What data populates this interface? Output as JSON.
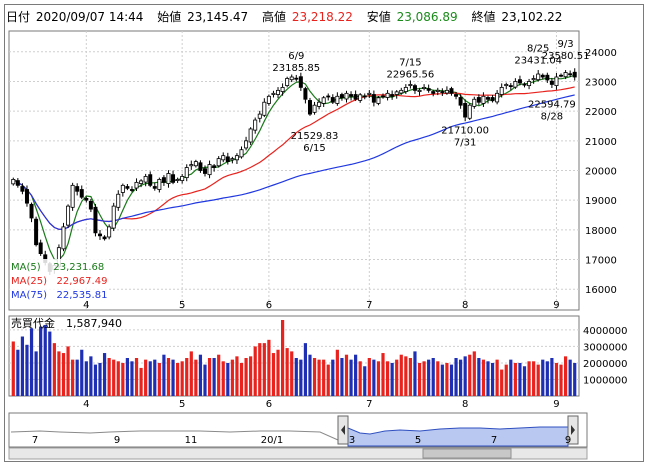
{
  "header": {
    "date_label": "日付",
    "date_value": "2020/09/07 14:44",
    "open_label": "始値",
    "open_value": "23,145.47",
    "high_label": "高値",
    "high_value": "23,218.22",
    "low_label": "安値",
    "low_value": "23,086.89",
    "close_label": "終値",
    "close_value": "23,102.22"
  },
  "colors": {
    "up": "#e8231e",
    "down": "#1e2fb4",
    "ma5": "#1a7a1a",
    "ma25": "#e8231e",
    "ma75": "#2038e0",
    "high_value": "#e8231e",
    "low_value": "#1a8a1a",
    "navigator_fill": "#b8c8f0"
  },
  "legend": {
    "ma5": "MA(5)    23,231.68",
    "ma25": "MA(25)   22,967.49",
    "ma75": "MA(75)   22,535.81"
  },
  "volume_header": "売買代金　1,587,940",
  "navigator_labels": [
    "7",
    "9",
    "11",
    "20/1",
    "3",
    "5",
    "7",
    "9"
  ],
  "chart_data": {
    "type": "candlestick",
    "title": "",
    "price_axis": {
      "ylim": [
        15300,
        24700
      ],
      "ticks": [
        16000,
        17000,
        18000,
        19000,
        20000,
        21000,
        22000,
        23000,
        24000
      ]
    },
    "volume_axis": {
      "ylim": [
        0,
        4600000
      ],
      "ticks": [
        1000000,
        2000000,
        3000000,
        4000000
      ]
    },
    "month_ticks": [
      {
        "label": "4",
        "index": 16
      },
      {
        "label": "5",
        "index": 37
      },
      {
        "label": "6",
        "index": 56
      },
      {
        "label": "7",
        "index": 78
      },
      {
        "label": "8",
        "index": 99
      },
      {
        "label": "9",
        "index": 119
      }
    ],
    "annotations": [
      {
        "date": "6/9",
        "text": "23185.85",
        "index": 62,
        "value": 23185.85,
        "pos": "above"
      },
      {
        "date": "6/15",
        "text": "21529.83",
        "index": 66,
        "value": 21529.83,
        "pos": "below"
      },
      {
        "date": "7/15",
        "text": "22965.56",
        "index": 87,
        "value": 22965.56,
        "pos": "above"
      },
      {
        "date": "7/31",
        "text": "21710.00",
        "index": 99,
        "value": 21710.0,
        "pos": "below"
      },
      {
        "date": "8/25",
        "text": "23431.04",
        "index": 115,
        "value": 23431.04,
        "pos": "above"
      },
      {
        "date": "9/3",
        "text": "23580.51",
        "index": 121,
        "value": 23580.51,
        "pos": "above"
      },
      {
        "date": "8/28",
        "text": "22594.79",
        "index": 118,
        "value": 22594.79,
        "pos": "below"
      }
    ],
    "close": [
      19700,
      19500,
      19300,
      18900,
      18400,
      17500,
      17200,
      16900,
      16600,
      16800,
      17400,
      18100,
      18800,
      19500,
      19300,
      19100,
      19000,
      18700,
      17900,
      17800,
      17700,
      18100,
      18800,
      19200,
      19500,
      19400,
      19350,
      19600,
      19650,
      19800,
      19500,
      19400,
      19700,
      19600,
      19900,
      19600,
      19700,
      19800,
      20100,
      20200,
      20300,
      20000,
      19900,
      20200,
      20100,
      20400,
      20500,
      20300,
      20400,
      20500,
      20700,
      21000,
      21400,
      21700,
      21900,
      22300,
      22500,
      22600,
      22700,
      22800,
      23100,
      23150,
      23100,
      22800,
      22400,
      21900,
      22200,
      22300,
      22450,
      22500,
      22300,
      22500,
      22450,
      22600,
      22500,
      22400,
      22550,
      22500,
      22600,
      22300,
      22450,
      22500,
      22600,
      22500,
      22650,
      22700,
      22800,
      22900,
      22700,
      22700,
      22800,
      22700,
      22600,
      22700,
      22650,
      22700,
      22600,
      22500,
      22200,
      21800,
      22200,
      22400,
      22300,
      22500,
      22400,
      22350,
      22600,
      22800,
      22900,
      22850,
      23000,
      22950,
      22900,
      23000,
      23100,
      23250,
      23150,
      23050,
      22900,
      23150,
      23200,
      23300,
      23250,
      23150
    ],
    "volume": [
      3300000,
      2800000,
      3600000,
      3100000,
      4100000,
      2700000,
      4200000,
      4300000,
      3900000,
      3200000,
      2700000,
      2600000,
      3000000,
      2200000,
      2200000,
      2800000,
      2100000,
      2400000,
      1900000,
      2000000,
      2600000,
      2300000,
      2200000,
      2100000,
      2000000,
      2300000,
      2100000,
      2300000,
      1700000,
      2200000,
      2100000,
      2200000,
      2000000,
      2500000,
      2300000,
      2200000,
      2000000,
      2100000,
      2300000,
      2700000,
      2200000,
      2500000,
      1900000,
      2300000,
      2300000,
      2500000,
      2100000,
      2000000,
      2200000,
      2400000,
      2000000,
      2300000,
      2400000,
      3000000,
      3200000,
      3200000,
      3400000,
      2600000,
      2800000,
      4600000,
      2900000,
      2700000,
      2300000,
      2200000,
      3200000,
      2500000,
      2300000,
      2200000,
      2200000,
      1900000,
      2200000,
      2800000,
      2300000,
      2500000,
      2200000,
      2500000,
      2100000,
      1800000,
      2300000,
      2200000,
      2100000,
      2600000,
      2100000,
      2000000,
      2200000,
      2500000,
      2400000,
      2300000,
      2700000,
      2000000,
      2100000,
      2200000,
      2300000,
      2100000,
      1900000,
      2000000,
      1900000,
      2300000,
      2200000,
      2400000,
      2500000,
      2700000,
      2300000,
      2200000,
      2100000,
      2000000,
      2200000,
      1600000,
      1900000,
      2200000,
      2000000,
      2000000,
      1800000,
      2100000,
      2100000,
      1900000,
      2200000,
      2100000,
      2300000,
      2000000,
      1900000,
      2400000,
      2200000,
      2000000
    ]
  }
}
